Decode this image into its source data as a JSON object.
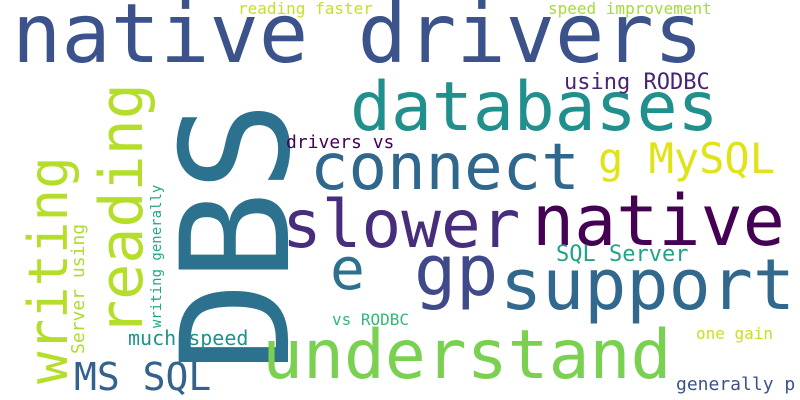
{
  "words": [
    {
      "text": "native drivers",
      "color": "#3b528b"
    },
    {
      "text": "DBS",
      "color": "#2c728e"
    },
    {
      "text": "databases",
      "color": "#21908d"
    },
    {
      "text": "connect",
      "color": "#30678d"
    },
    {
      "text": "slower",
      "color": "#472d7b"
    },
    {
      "text": "native",
      "color": "#440154"
    },
    {
      "text": "support",
      "color": "#31688e"
    },
    {
      "text": "understand",
      "color": "#7ad151"
    },
    {
      "text": "gp",
      "color": "#3e4a89"
    },
    {
      "text": "e",
      "color": "#2c728e"
    },
    {
      "text": "writing",
      "color": "#b5de2b"
    },
    {
      "text": "reading",
      "color": "#b5de2b"
    },
    {
      "text": "g MySQL",
      "color": "#dfe318"
    },
    {
      "text": "MS SQL",
      "color": "#33638d"
    },
    {
      "text": "SQL Server",
      "color": "#20a386"
    },
    {
      "text": "using RODBC",
      "color": "#482475"
    },
    {
      "text": "drivers vs",
      "color": "#440154"
    },
    {
      "text": "much speed",
      "color": "#21918c"
    },
    {
      "text": "vs RODBC",
      "color": "#35b779"
    },
    {
      "text": "one gain",
      "color": "#c8e020"
    },
    {
      "text": "generally p",
      "color": "#3b528b"
    },
    {
      "text": "reading faster",
      "color": "#c8e020"
    },
    {
      "text": "speed improvement",
      "color": "#a5db36"
    },
    {
      "text": "Server using",
      "color": "#addc30"
    },
    {
      "text": "writing generally",
      "color": "#22a884"
    }
  ]
}
